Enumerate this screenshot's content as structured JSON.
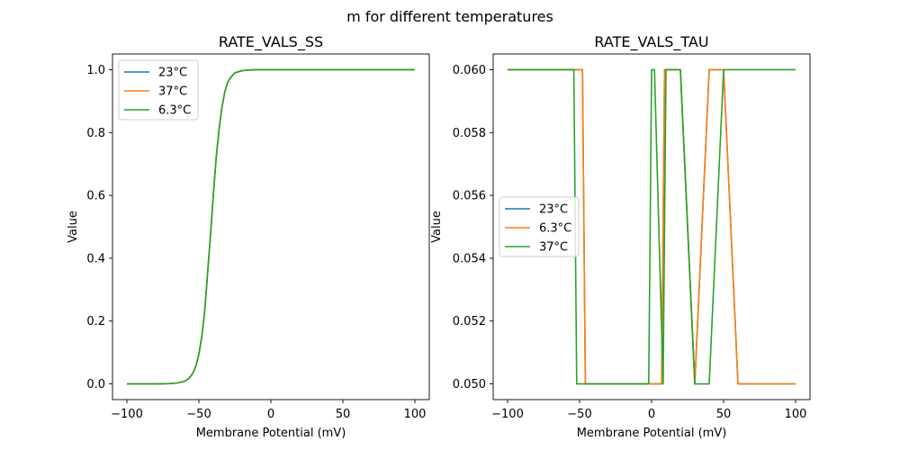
{
  "figure": {
    "suptitle": "m for different temperatures"
  },
  "chart_data": [
    {
      "type": "line",
      "title": "RATE_VALS_SS",
      "xlabel": "Membrane Potential (mV)",
      "ylabel": "Value",
      "xlim": [
        -110,
        110
      ],
      "ylim": [
        -0.05,
        1.05
      ],
      "xticks": [
        -100,
        -50,
        0,
        50,
        100
      ],
      "xtick_labels": [
        "−100",
        "−50",
        "0",
        "50",
        "100"
      ],
      "yticks": [
        0.0,
        0.2,
        0.4,
        0.6,
        0.8,
        1.0
      ],
      "ytick_labels": [
        "0.0",
        "0.2",
        "0.4",
        "0.6",
        "0.8",
        "1.0"
      ],
      "legend_placement": "upper-left",
      "series": [
        {
          "name": "23°C",
          "color": "#1f77b4",
          "x": [
            -100,
            -90,
            -80,
            -70,
            -65,
            -60,
            -57,
            -54,
            -52,
            -50,
            -48,
            -46,
            -45,
            -44,
            -42,
            -40,
            -38,
            -36,
            -34,
            -32,
            -30,
            -28,
            -25,
            -20,
            -15,
            -10,
            0,
            50,
            100
          ],
          "y": [
            0.0,
            0.0,
            0.0,
            0.001,
            0.003,
            0.008,
            0.017,
            0.035,
            0.058,
            0.095,
            0.15,
            0.23,
            0.29,
            0.35,
            0.47,
            0.6,
            0.72,
            0.81,
            0.88,
            0.93,
            0.96,
            0.975,
            0.99,
            0.997,
            0.999,
            1.0,
            1.0,
            1.0,
            1.0
          ]
        },
        {
          "name": "37°C",
          "color": "#ff7f0e",
          "x": [
            -100,
            -90,
            -80,
            -70,
            -65,
            -60,
            -57,
            -54,
            -52,
            -50,
            -48,
            -46,
            -45,
            -44,
            -42,
            -40,
            -38,
            -36,
            -34,
            -32,
            -30,
            -28,
            -25,
            -20,
            -15,
            -10,
            0,
            50,
            100
          ],
          "y": [
            0.0,
            0.0,
            0.0,
            0.001,
            0.003,
            0.008,
            0.017,
            0.035,
            0.058,
            0.095,
            0.15,
            0.23,
            0.29,
            0.35,
            0.47,
            0.6,
            0.72,
            0.81,
            0.88,
            0.93,
            0.96,
            0.975,
            0.99,
            0.997,
            0.999,
            1.0,
            1.0,
            1.0,
            1.0
          ]
        },
        {
          "name": "6.3°C",
          "color": "#2ca02c",
          "x": [
            -100,
            -90,
            -80,
            -70,
            -65,
            -60,
            -57,
            -54,
            -52,
            -50,
            -48,
            -46,
            -45,
            -44,
            -42,
            -40,
            -38,
            -36,
            -34,
            -32,
            -30,
            -28,
            -25,
            -20,
            -15,
            -10,
            0,
            50,
            100
          ],
          "y": [
            0.0,
            0.0,
            0.0,
            0.001,
            0.003,
            0.008,
            0.017,
            0.035,
            0.058,
            0.095,
            0.15,
            0.23,
            0.29,
            0.35,
            0.47,
            0.6,
            0.72,
            0.81,
            0.88,
            0.93,
            0.96,
            0.975,
            0.99,
            0.997,
            0.999,
            1.0,
            1.0,
            1.0,
            1.0
          ]
        }
      ]
    },
    {
      "type": "line",
      "title": "RATE_VALS_TAU",
      "xlabel": "Membrane Potential (mV)",
      "ylabel": "Value",
      "xlim": [
        -110,
        110
      ],
      "ylim": [
        0.0495,
        0.0605
      ],
      "xticks": [
        -100,
        -50,
        0,
        50,
        100
      ],
      "xtick_labels": [
        "−100",
        "−50",
        "0",
        "50",
        "100"
      ],
      "yticks": [
        0.05,
        0.052,
        0.054,
        0.056,
        0.058,
        0.06
      ],
      "ytick_labels": [
        "0.050",
        "0.052",
        "0.054",
        "0.056",
        "0.058",
        "0.060"
      ],
      "legend_placement": "center-left",
      "series": [
        {
          "name": "23°C",
          "color": "#1f77b4",
          "x": [
            -100,
            -48,
            -46,
            5,
            7,
            9,
            20,
            30,
            40,
            50,
            60,
            100
          ],
          "y": [
            0.06,
            0.06,
            0.05,
            0.05,
            0.05,
            0.06,
            0.06,
            0.05,
            0.06,
            0.06,
            0.05,
            0.05
          ]
        },
        {
          "name": "6.3°C",
          "color": "#ff7f0e",
          "x": [
            -100,
            -48,
            -46,
            5,
            7,
            9,
            20,
            30,
            40,
            50,
            60,
            100
          ],
          "y": [
            0.06,
            0.06,
            0.05,
            0.05,
            0.05,
            0.06,
            0.06,
            0.05,
            0.06,
            0.06,
            0.05,
            0.05
          ]
        },
        {
          "name": "37°C",
          "color": "#2ca02c",
          "x": [
            -100,
            -54,
            -52,
            -2,
            0,
            2,
            8,
            10,
            20,
            30,
            40,
            50,
            100
          ],
          "y": [
            0.06,
            0.06,
            0.05,
            0.05,
            0.06,
            0.06,
            0.05,
            0.06,
            0.06,
            0.05,
            0.05,
            0.06,
            0.06
          ]
        }
      ]
    }
  ]
}
